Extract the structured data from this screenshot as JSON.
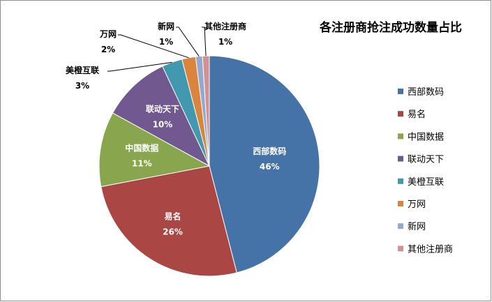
{
  "chart_data": {
    "type": "pie",
    "title": "各注册商抢注成功数量占比",
    "legend_position": "right",
    "slices": [
      {
        "name": "西部数码",
        "value": 46,
        "label": "46%",
        "color": "#4572A7"
      },
      {
        "name": "易名",
        "value": 26,
        "label": "26%",
        "color": "#AA4643"
      },
      {
        "name": "中国数据",
        "value": 11,
        "label": "11%",
        "color": "#89A54E"
      },
      {
        "name": "联动天下",
        "value": 10,
        "label": "10%",
        "color": "#71588F"
      },
      {
        "name": "美橙互联",
        "value": 3,
        "label": "3%",
        "color": "#4198AF"
      },
      {
        "name": "万网",
        "value": 2,
        "label": "2%",
        "color": "#DB843D"
      },
      {
        "name": "新网",
        "value": 1,
        "label": "1%",
        "color": "#93A9CF"
      },
      {
        "name": "其他注册商",
        "value": 1,
        "label": "1%",
        "color": "#D19392"
      }
    ]
  }
}
